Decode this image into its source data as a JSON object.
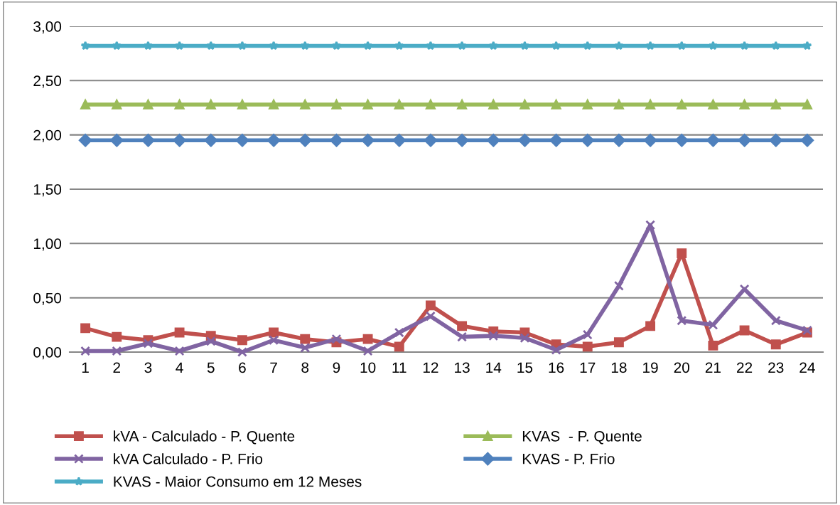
{
  "chart_data": {
    "type": "line",
    "categories": [
      "1",
      "2",
      "3",
      "4",
      "5",
      "6",
      "7",
      "8",
      "9",
      "10",
      "11",
      "12",
      "13",
      "14",
      "15",
      "16",
      "17",
      "18",
      "19",
      "20",
      "21",
      "22",
      "23",
      "24"
    ],
    "series": [
      {
        "name": "kVA - Calculado - P. Quente",
        "color": "#c0504d",
        "marker": "square",
        "values": [
          0.22,
          0.14,
          0.11,
          0.18,
          0.15,
          0.11,
          0.18,
          0.12,
          0.09,
          0.12,
          0.05,
          0.43,
          0.24,
          0.19,
          0.18,
          0.07,
          0.05,
          0.09,
          0.24,
          0.91,
          0.06,
          0.2,
          0.07,
          0.18
        ]
      },
      {
        "name": "KVAS  - P. Quente",
        "color": "#9bbb59",
        "marker": "triangle",
        "values": [
          2.28,
          2.28,
          2.28,
          2.28,
          2.28,
          2.28,
          2.28,
          2.28,
          2.28,
          2.28,
          2.28,
          2.28,
          2.28,
          2.28,
          2.28,
          2.28,
          2.28,
          2.28,
          2.28,
          2.28,
          2.28,
          2.28,
          2.28,
          2.28
        ]
      },
      {
        "name": "kVA Calculado - P. Frio",
        "color": "#8064a2",
        "marker": "cross",
        "values": [
          0.01,
          0.01,
          0.08,
          0.01,
          0.1,
          0.0,
          0.11,
          0.04,
          0.12,
          0.01,
          0.18,
          0.33,
          0.14,
          0.15,
          0.13,
          0.02,
          0.16,
          0.61,
          1.17,
          0.29,
          0.25,
          0.58,
          0.29,
          0.2
        ]
      },
      {
        "name": "KVAS - P. Frio",
        "color": "#4f81bd",
        "marker": "diamond",
        "values": [
          1.95,
          1.95,
          1.95,
          1.95,
          1.95,
          1.95,
          1.95,
          1.95,
          1.95,
          1.95,
          1.95,
          1.95,
          1.95,
          1.95,
          1.95,
          1.95,
          1.95,
          1.95,
          1.95,
          1.95,
          1.95,
          1.95,
          1.95,
          1.95
        ]
      },
      {
        "name": "KVAS - Maior Consumo em 12 Meses",
        "color": "#4bacc6",
        "marker": "star",
        "values": [
          2.82,
          2.82,
          2.82,
          2.82,
          2.82,
          2.82,
          2.82,
          2.82,
          2.82,
          2.82,
          2.82,
          2.82,
          2.82,
          2.82,
          2.82,
          2.82,
          2.82,
          2.82,
          2.82,
          2.82,
          2.82,
          2.82,
          2.82,
          2.82
        ]
      }
    ],
    "ylim": [
      0,
      3
    ],
    "yticks": [
      {
        "value": 0,
        "label": "0,00"
      },
      {
        "value": 0.5,
        "label": "0,50"
      },
      {
        "value": 1,
        "label": "1,00"
      },
      {
        "value": 1.5,
        "label": "1,50"
      },
      {
        "value": 2,
        "label": "2,00"
      },
      {
        "value": 2.5,
        "label": "2,50"
      },
      {
        "value": 3,
        "label": "3,00"
      }
    ],
    "grid": "y",
    "legend": "bottom",
    "line_style": "solid"
  }
}
